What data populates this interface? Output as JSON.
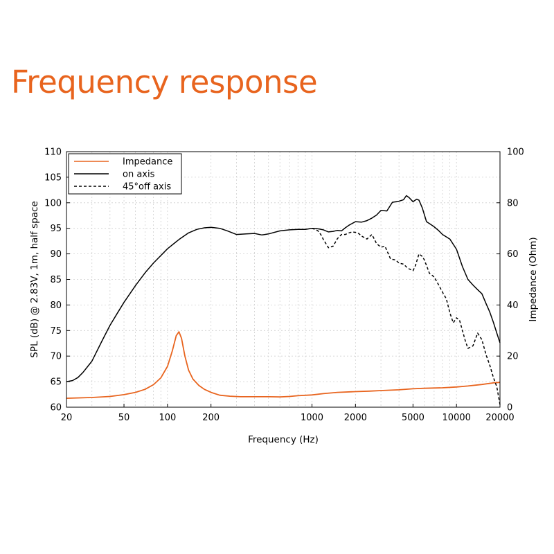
{
  "page": {
    "title": "Frequency response"
  },
  "chart_data": {
    "type": "line",
    "xlabel": "Frequency (Hz)",
    "ylabel": "SPL (dB) @ 2.83V, 1m, half space",
    "y2label": "Impedance (Ohm)",
    "xscale": "log",
    "xlim": [
      20,
      20000
    ],
    "ylim": [
      60,
      110
    ],
    "y2lim": [
      0,
      100
    ],
    "x_ticks": [
      20,
      50,
      100,
      200,
      1000,
      2000,
      5000,
      10000,
      20000
    ],
    "y_ticks": [
      60,
      65,
      70,
      75,
      80,
      85,
      90,
      95,
      100,
      105,
      110
    ],
    "y2_ticks": [
      0,
      20,
      40,
      60,
      80,
      100
    ],
    "grid": true,
    "legend_position": "top-left",
    "colors": {
      "impedance": "#e8641e",
      "on_axis": "#000000",
      "off_axis": "#000000"
    },
    "series": [
      {
        "name": "Impedance",
        "axis": "right",
        "style": "solid",
        "color": "#e8641e",
        "x": [
          20,
          30,
          40,
          50,
          60,
          70,
          80,
          90,
          100,
          108,
          115,
          120,
          125,
          132,
          140,
          150,
          165,
          180,
          200,
          230,
          270,
          320,
          400,
          500,
          600,
          700,
          800,
          1000,
          1200,
          1500,
          2000,
          2500,
          3000,
          4000,
          5000,
          6000,
          7000,
          8000,
          10000,
          12000,
          15000,
          18000,
          20000
        ],
        "y": [
          3.5,
          3.8,
          4.2,
          4.9,
          5.8,
          7.0,
          8.8,
          11.5,
          16.0,
          22.0,
          28.0,
          29.5,
          27.0,
          20.0,
          14.5,
          11.0,
          8.5,
          7.0,
          5.8,
          4.7,
          4.3,
          4.1,
          4.1,
          4.1,
          4.0,
          4.2,
          4.5,
          4.8,
          5.3,
          5.8,
          6.1,
          6.3,
          6.5,
          6.8,
          7.2,
          7.4,
          7.5,
          7.6,
          7.9,
          8.3,
          8.9,
          9.5,
          9.7
        ]
      },
      {
        "name": "on axis",
        "axis": "left",
        "style": "solid",
        "color": "#000000",
        "x": [
          20,
          22,
          24,
          26,
          30,
          35,
          40,
          45,
          50,
          60,
          70,
          80,
          100,
          120,
          140,
          160,
          180,
          200,
          230,
          260,
          300,
          350,
          400,
          450,
          500,
          600,
          700,
          800,
          900,
          1000,
          1100,
          1200,
          1300,
          1400,
          1500,
          1600,
          1700,
          1800,
          2000,
          2200,
          2400,
          2600,
          2800,
          3000,
          3300,
          3600,
          4000,
          4300,
          4500,
          4700,
          5000,
          5300,
          5500,
          5800,
          6200,
          6600,
          7000,
          7500,
          8000,
          9000,
          10000,
          11000,
          12000,
          13000,
          14000,
          15000,
          16000,
          17000,
          18000,
          19000,
          20000
        ],
        "y": [
          65.0,
          65.2,
          65.8,
          66.8,
          69.0,
          72.8,
          76.0,
          78.4,
          80.5,
          83.8,
          86.3,
          88.2,
          91.0,
          92.8,
          94.1,
          94.8,
          95.1,
          95.2,
          95.0,
          94.5,
          93.8,
          93.9,
          94.0,
          93.7,
          93.9,
          94.5,
          94.7,
          94.8,
          94.8,
          95.0,
          94.9,
          94.7,
          94.3,
          94.4,
          94.6,
          94.5,
          95.1,
          95.6,
          96.3,
          96.2,
          96.5,
          97.0,
          97.6,
          98.5,
          98.4,
          100.1,
          100.3,
          100.6,
          101.4,
          101.0,
          100.2,
          100.7,
          100.5,
          99.0,
          96.3,
          95.8,
          95.3,
          94.6,
          93.8,
          92.9,
          90.9,
          87.5,
          85.0,
          83.9,
          83.0,
          82.2,
          80.3,
          78.6,
          76.6,
          74.5,
          72.6
        ]
      },
      {
        "name": "45°off axis",
        "axis": "left",
        "style": "dashed",
        "color": "#000000",
        "x": [
          1000,
          1050,
          1100,
          1150,
          1200,
          1300,
          1400,
          1500,
          1600,
          1700,
          1800,
          1900,
          2000,
          2100,
          2200,
          2400,
          2600,
          2800,
          3000,
          3200,
          3500,
          3800,
          4000,
          4300,
          4600,
          5000,
          5200,
          5500,
          5800,
          6000,
          6500,
          7000,
          7500,
          8000,
          8500,
          9000,
          9500,
          10000,
          10500,
          11000,
          11500,
          12000,
          13000,
          14000,
          15000,
          16000,
          17000,
          18000,
          19000,
          20000
        ],
        "y": [
          95.0,
          94.8,
          94.5,
          93.8,
          92.8,
          91.2,
          91.5,
          93.0,
          93.8,
          93.8,
          94.1,
          94.3,
          94.2,
          94.0,
          93.5,
          92.9,
          93.8,
          92.0,
          91.3,
          91.5,
          89.0,
          88.8,
          88.2,
          88.0,
          87.2,
          86.7,
          87.7,
          90.0,
          89.5,
          88.8,
          86.2,
          85.5,
          84.0,
          82.5,
          81.2,
          78.5,
          76.5,
          77.5,
          77.0,
          75.0,
          73.0,
          71.5,
          72.0,
          74.5,
          73.2,
          70.3,
          68.2,
          65.8,
          64.0,
          60.5
        ]
      }
    ]
  }
}
